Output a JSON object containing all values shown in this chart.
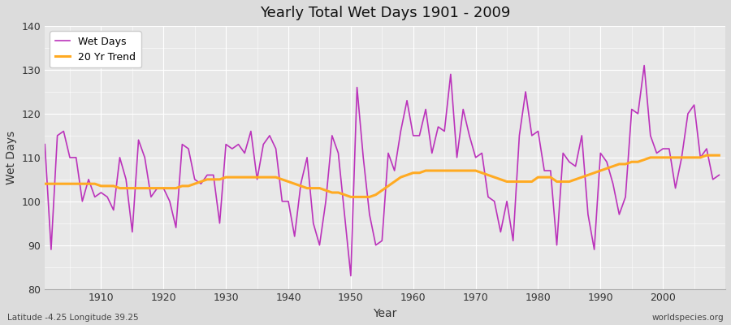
{
  "title": "Yearly Total Wet Days 1901 - 2009",
  "xlabel": "Year",
  "ylabel": "Wet Days",
  "subtitle_left": "Latitude -4.25 Longitude 39.25",
  "subtitle_right": "worldspecies.org",
  "ylim": [
    80,
    140
  ],
  "yticks": [
    80,
    90,
    100,
    110,
    120,
    130,
    140
  ],
  "wet_days_color": "#bb33bb",
  "trend_color": "#ffaa22",
  "bg_color": "#e8e8e8",
  "fig_color": "#dcdcdc",
  "years": [
    1901,
    1902,
    1903,
    1904,
    1905,
    1906,
    1907,
    1908,
    1909,
    1910,
    1911,
    1912,
    1913,
    1914,
    1915,
    1916,
    1917,
    1918,
    1919,
    1920,
    1921,
    1922,
    1923,
    1924,
    1925,
    1926,
    1927,
    1928,
    1929,
    1930,
    1931,
    1932,
    1933,
    1934,
    1935,
    1936,
    1937,
    1938,
    1939,
    1940,
    1941,
    1942,
    1943,
    1944,
    1945,
    1946,
    1947,
    1948,
    1949,
    1950,
    1951,
    1952,
    1953,
    1954,
    1955,
    1956,
    1957,
    1958,
    1959,
    1960,
    1961,
    1962,
    1963,
    1964,
    1965,
    1966,
    1967,
    1968,
    1969,
    1970,
    1971,
    1972,
    1973,
    1974,
    1975,
    1976,
    1977,
    1978,
    1979,
    1980,
    1981,
    1982,
    1983,
    1984,
    1985,
    1986,
    1987,
    1988,
    1989,
    1990,
    1991,
    1992,
    1993,
    1994,
    1995,
    1996,
    1997,
    1998,
    1999,
    2000,
    2001,
    2002,
    2003,
    2004,
    2005,
    2006,
    2007,
    2008,
    2009
  ],
  "wet_days": [
    113,
    89,
    115,
    116,
    110,
    110,
    100,
    105,
    101,
    102,
    101,
    98,
    110,
    105,
    93,
    114,
    110,
    101,
    103,
    103,
    100,
    94,
    113,
    112,
    105,
    104,
    106,
    106,
    95,
    113,
    112,
    113,
    111,
    116,
    105,
    113,
    115,
    112,
    100,
    100,
    92,
    104,
    110,
    95,
    90,
    100,
    115,
    111,
    97,
    83,
    126,
    110,
    97,
    90,
    91,
    111,
    107,
    116,
    123,
    115,
    115,
    121,
    111,
    117,
    116,
    129,
    110,
    121,
    115,
    110,
    111,
    101,
    100,
    93,
    100,
    91,
    115,
    125,
    115,
    116,
    107,
    107,
    90,
    111,
    109,
    108,
    115,
    97,
    89,
    111,
    109,
    104,
    97,
    101,
    121,
    120,
    131,
    115,
    111,
    112,
    112,
    103,
    110,
    120,
    122,
    110,
    112,
    105,
    106
  ],
  "trend": [
    104.0,
    104.0,
    104.0,
    104.0,
    104.0,
    104.0,
    104.0,
    104.0,
    104.0,
    103.5,
    103.5,
    103.5,
    103.0,
    103.0,
    103.0,
    103.0,
    103.0,
    103.0,
    103.0,
    103.0,
    103.0,
    103.0,
    103.5,
    103.5,
    104.0,
    104.5,
    105.0,
    105.0,
    105.0,
    105.5,
    105.5,
    105.5,
    105.5,
    105.5,
    105.5,
    105.5,
    105.5,
    105.5,
    105.0,
    104.5,
    104.0,
    103.5,
    103.0,
    103.0,
    103.0,
    102.5,
    102.0,
    102.0,
    101.5,
    101.0,
    101.0,
    101.0,
    101.0,
    101.5,
    102.5,
    103.5,
    104.5,
    105.5,
    106.0,
    106.5,
    106.5,
    107.0,
    107.0,
    107.0,
    107.0,
    107.0,
    107.0,
    107.0,
    107.0,
    107.0,
    106.5,
    106.0,
    105.5,
    105.0,
    104.5,
    104.5,
    104.5,
    104.5,
    104.5,
    105.5,
    105.5,
    105.5,
    104.5,
    104.5,
    104.5,
    105.0,
    105.5,
    106.0,
    106.5,
    107.0,
    107.5,
    108.0,
    108.5,
    108.5,
    109.0,
    109.0,
    109.5,
    110.0,
    110.0,
    110.0,
    110.0,
    110.0,
    110.0,
    110.0,
    110.0,
    110.0,
    110.5,
    110.5,
    110.5
  ]
}
